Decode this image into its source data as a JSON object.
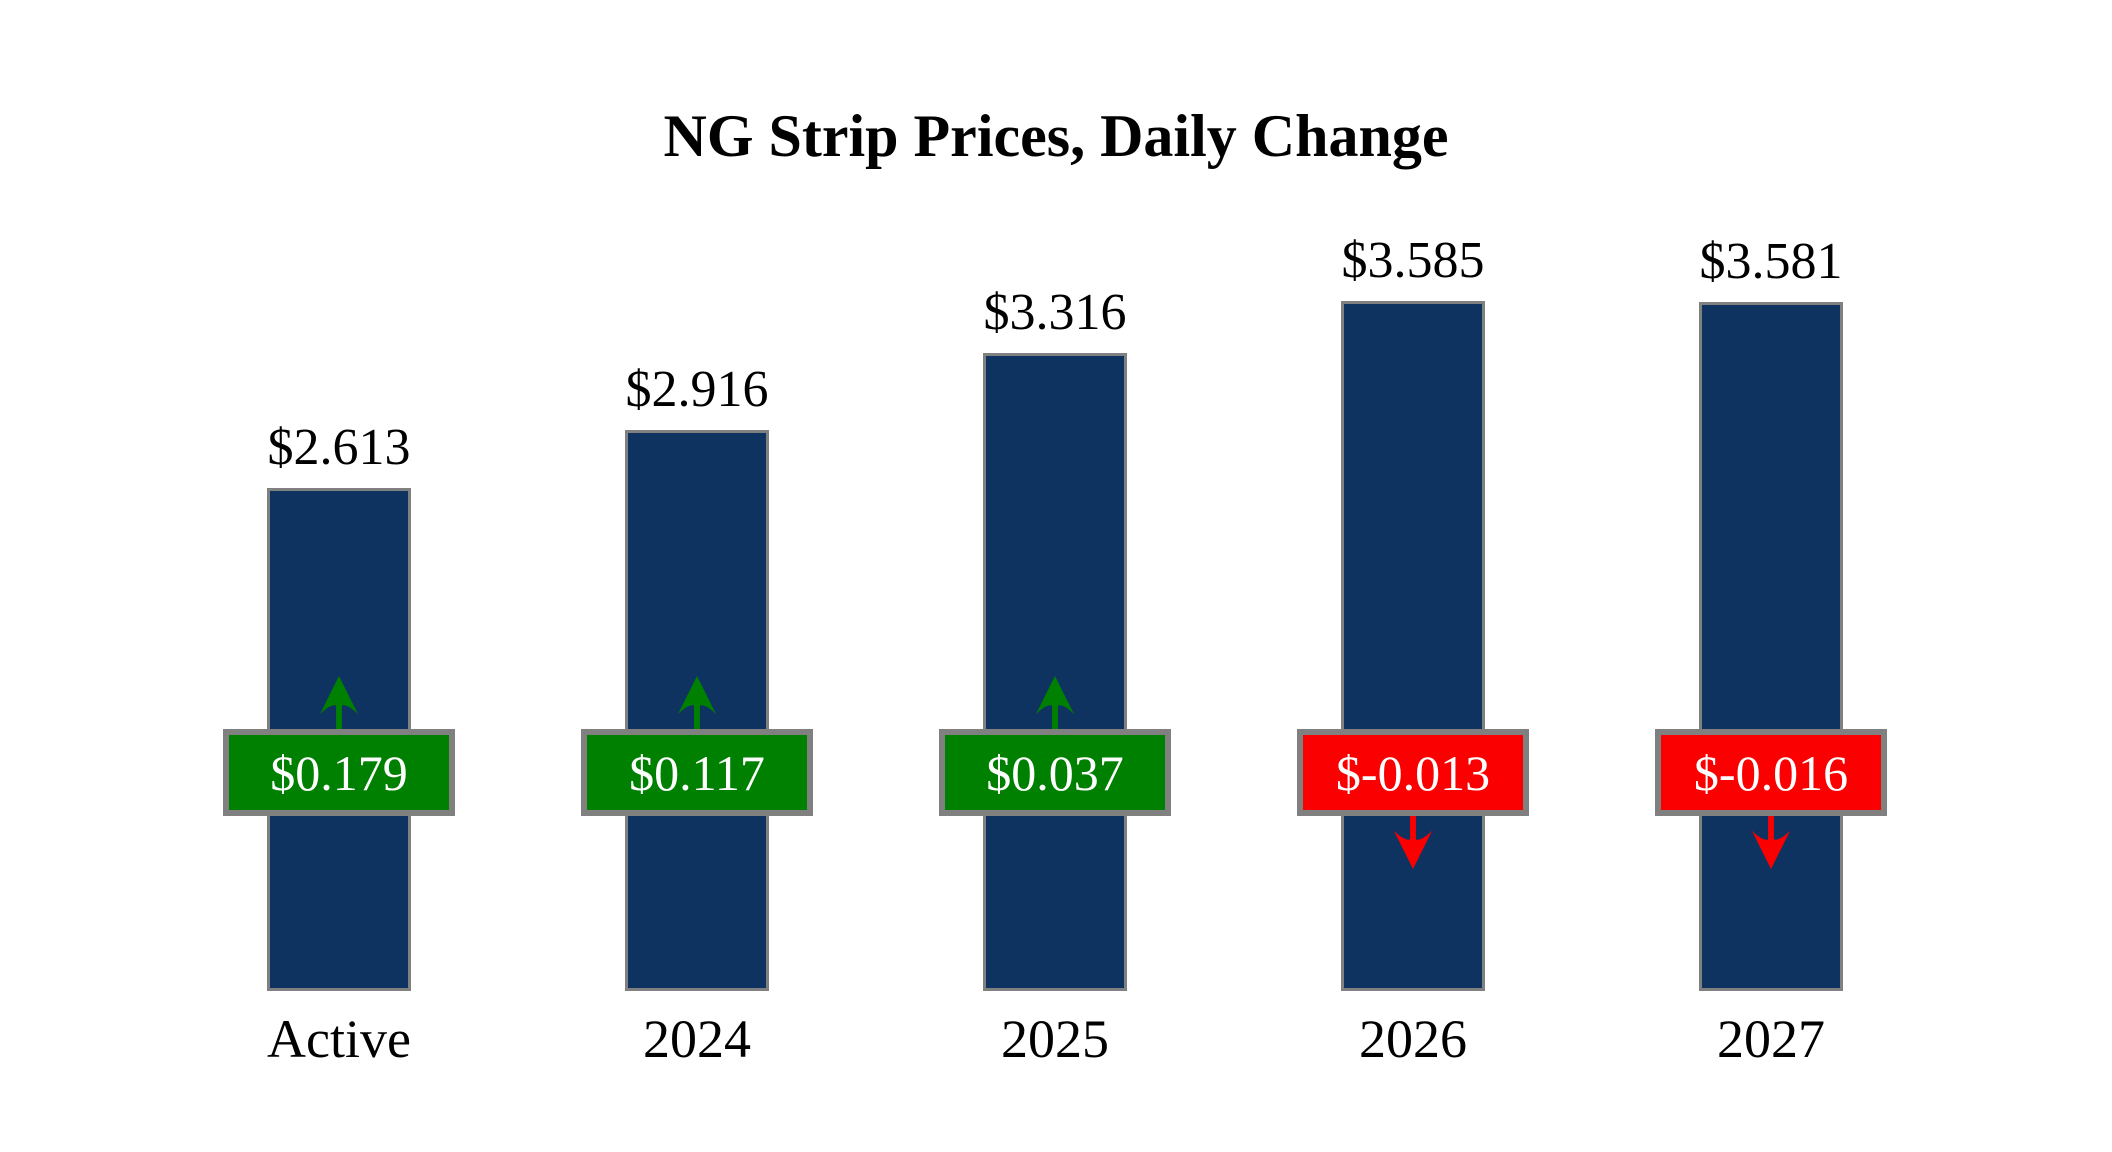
{
  "chart_data": {
    "type": "bar",
    "title": "NG Strip Prices, Daily Change",
    "xlabel": "",
    "ylabel": "",
    "ylim": [
      0,
      3.7
    ],
    "grid": false,
    "legend": "none",
    "categories": [
      "Active",
      "2024",
      "2025",
      "2026",
      "2027"
    ],
    "series": [
      {
        "name": "Strip Price",
        "values": [
          2.613,
          2.916,
          3.316,
          3.585,
          3.581
        ]
      },
      {
        "name": "Daily Change",
        "values": [
          0.179,
          0.117,
          0.037,
          -0.013,
          -0.016
        ]
      }
    ],
    "bars": [
      {
        "category": "Active",
        "price": 2.613,
        "price_label": "$2.613",
        "change": 0.179,
        "change_label": "$0.179",
        "direction": "up"
      },
      {
        "category": "2024",
        "price": 2.916,
        "price_label": "$2.916",
        "change": 0.117,
        "change_label": "$0.117",
        "direction": "up"
      },
      {
        "category": "2025",
        "price": 3.316,
        "price_label": "$3.316",
        "change": 0.037,
        "change_label": "$0.037",
        "direction": "up"
      },
      {
        "category": "2026",
        "price": 3.585,
        "price_label": "$3.585",
        "change": -0.013,
        "change_label": "$-0.013",
        "direction": "down"
      },
      {
        "category": "2027",
        "price": 3.581,
        "price_label": "$3.581",
        "change": -0.016,
        "change_label": "$-0.016",
        "direction": "down"
      }
    ],
    "colors": {
      "bar_fill": "#0E3361",
      "bar_border": "#808080",
      "up_fill": "#008000",
      "down_fill": "#FA0000",
      "badge_border": "#808080",
      "badge_text": "#FFFFFF",
      "label_text": "#000000",
      "background": "#FFFFFF"
    }
  }
}
